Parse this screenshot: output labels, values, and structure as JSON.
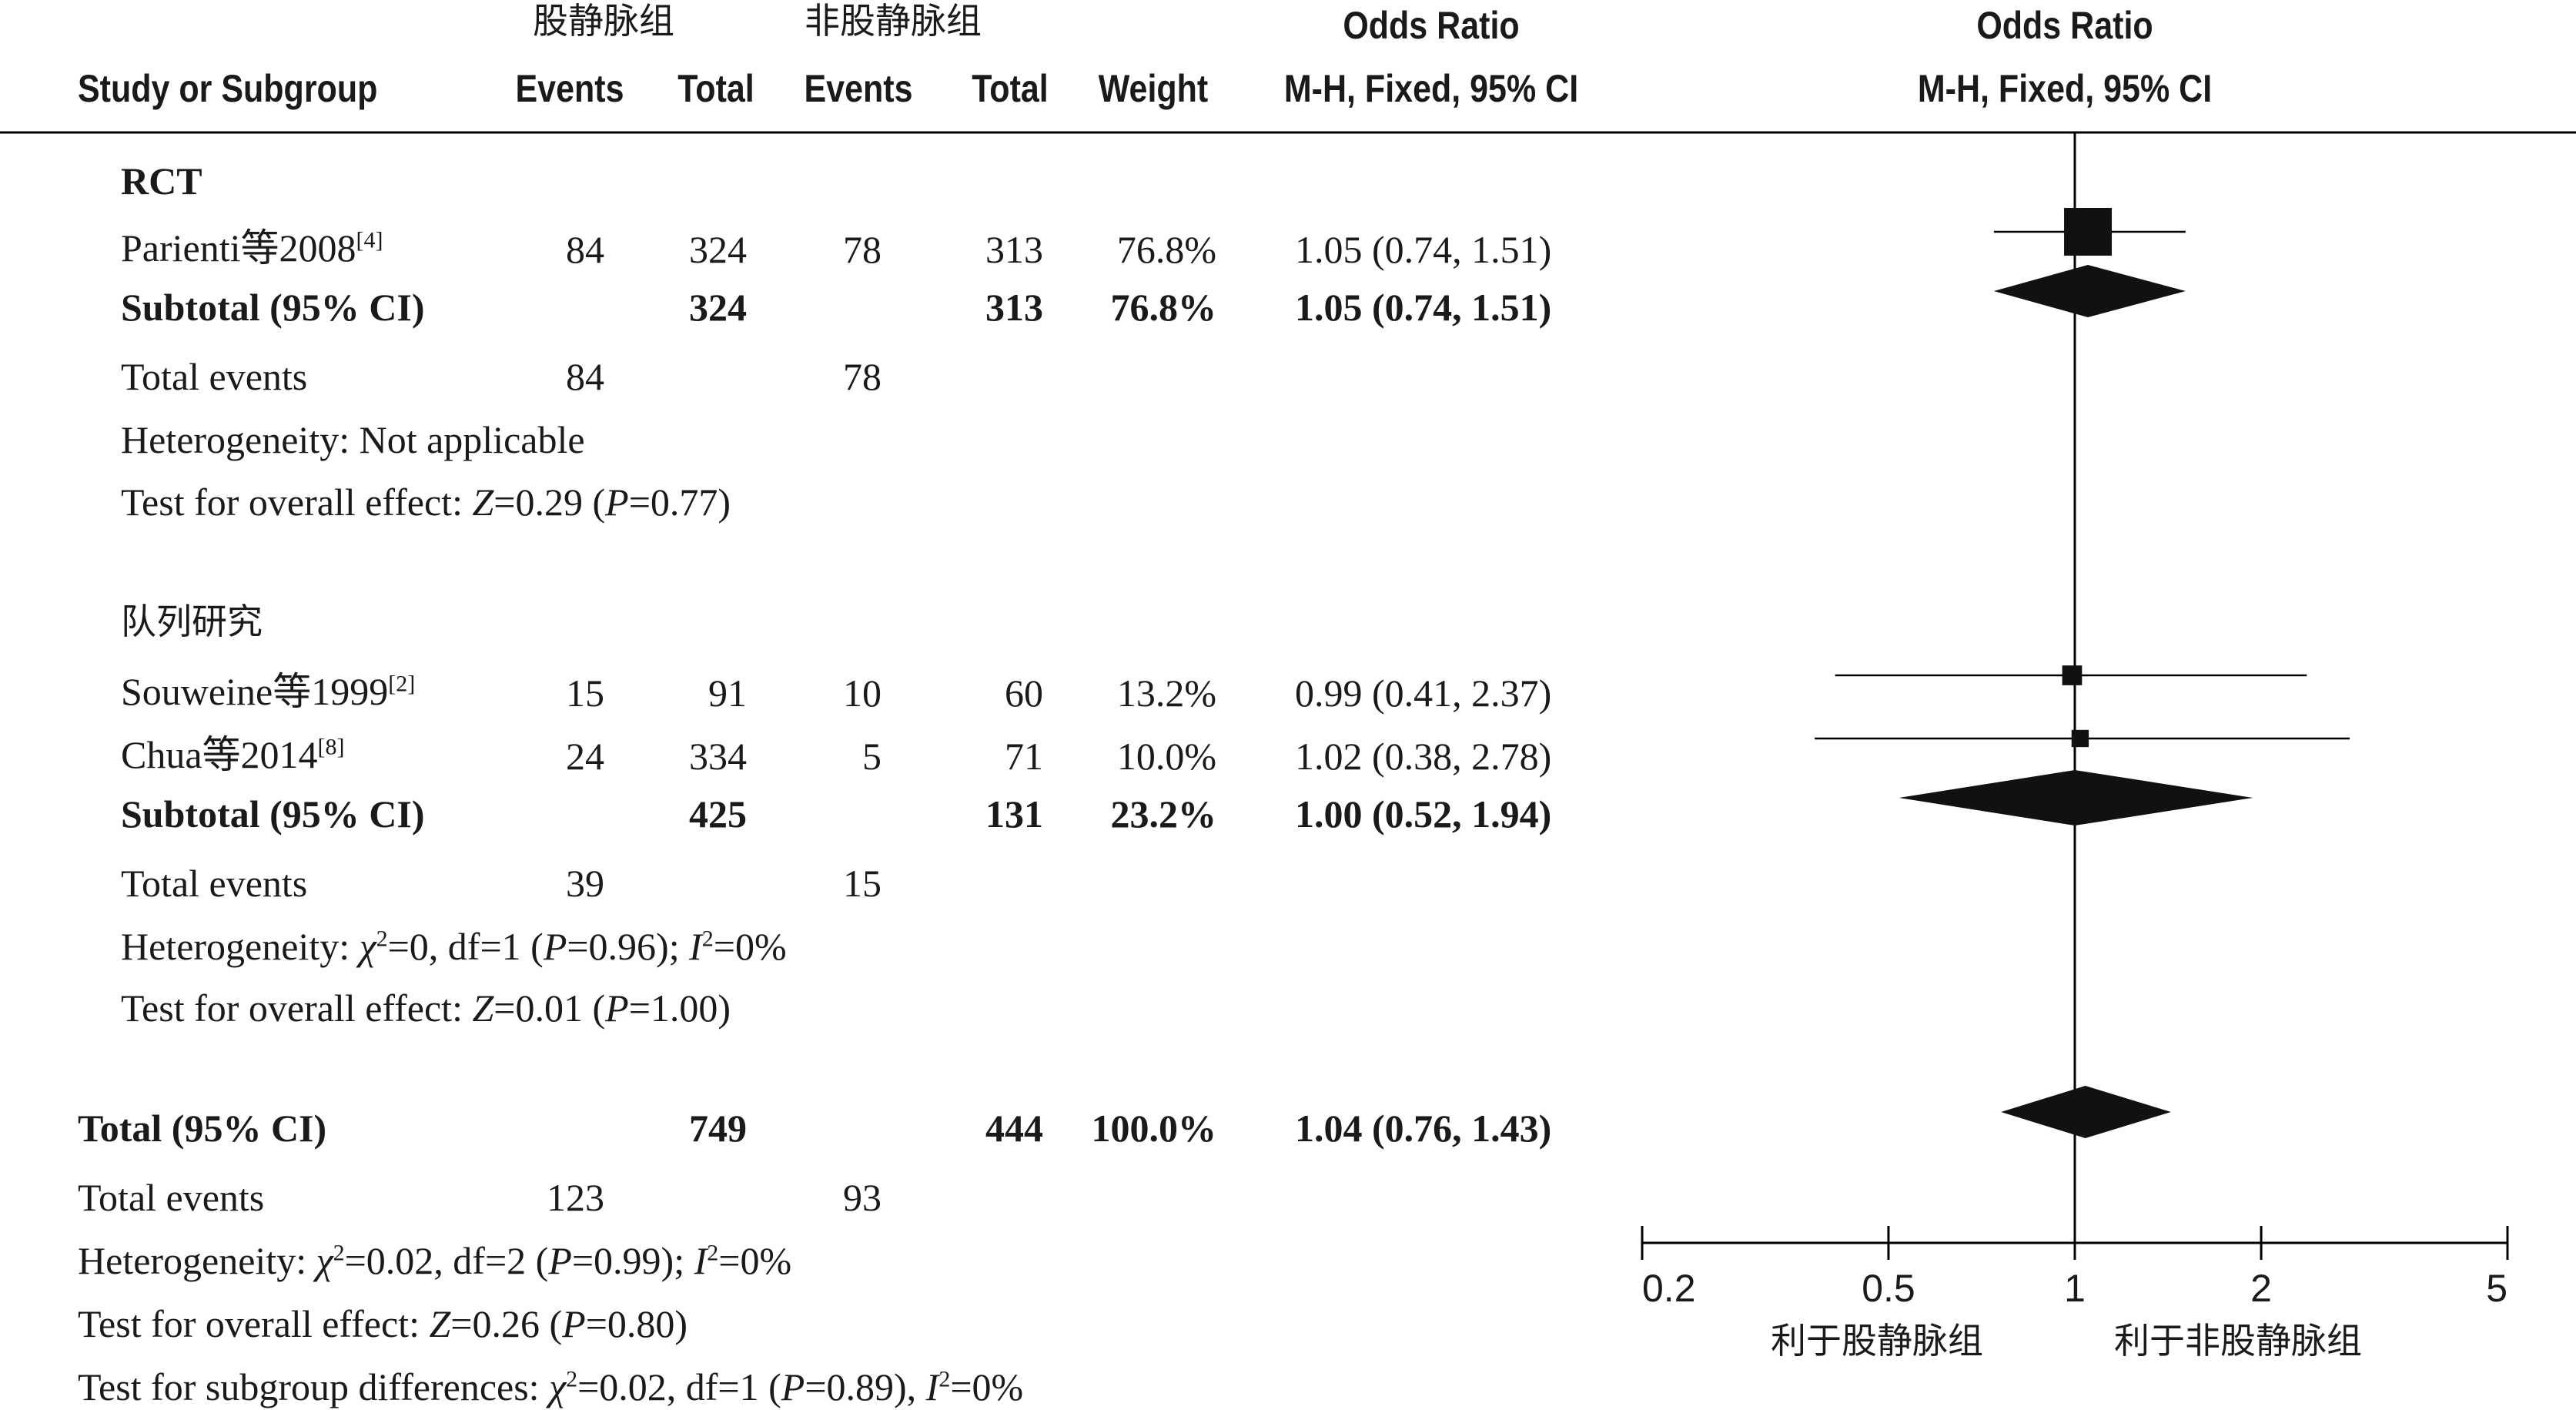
{
  "header": {
    "group1": "股静脉组",
    "group2": "非股静脉组",
    "odds_ratio_table": "Odds Ratio",
    "method_table": "M-H, Fixed, 95% CI",
    "odds_ratio_plot": "Odds Ratio",
    "method_plot": "M-H, Fixed, 95% CI",
    "study": "Study or Subgroup",
    "events1": "Events",
    "total1": "Total",
    "events2": "Events",
    "total2": "Total",
    "weight": "Weight"
  },
  "subgroups": [
    {
      "label": "RCT",
      "studies": [
        {
          "name": "Parienti等2008",
          "ref": "[4]",
          "events1": "84",
          "total1": "324",
          "events2": "78",
          "total2": "313",
          "weight": "76.8%",
          "ci": "1.05 (0.74, 1.51)"
        }
      ],
      "subtotal": {
        "label": "Subtotal (95% CI)",
        "total1": "324",
        "total2": "313",
        "weight": "76.8%",
        "ci": "1.05 (0.74, 1.51)"
      },
      "total_events": {
        "label": "Total events",
        "e1": "84",
        "e2": "78"
      },
      "heterogeneity": "Heterogeneity: Not applicable",
      "overall": {
        "pre": "Test for overall effect: ",
        "z": "Z",
        "zval": "=0.29 (",
        "p": "P",
        "pval": "=0.77)"
      }
    },
    {
      "label": "队列研究",
      "studies": [
        {
          "name": "Souweine等1999",
          "ref": "[2]",
          "events1": "15",
          "total1": "91",
          "events2": "10",
          "total2": "60",
          "weight": "13.2%",
          "ci": "0.99 (0.41, 2.37)"
        },
        {
          "name": "Chua等2014",
          "ref": "[8]",
          "events1": "24",
          "total1": "334",
          "events2": "5",
          "total2": "71",
          "weight": "10.0%",
          "ci": "1.02 (0.38, 2.78)"
        }
      ],
      "subtotal": {
        "label": "Subtotal (95% CI)",
        "total1": "425",
        "total2": "131",
        "weight": "23.2%",
        "ci": "1.00 (0.52, 1.94)"
      },
      "total_events": {
        "label": "Total events",
        "e1": "39",
        "e2": "15"
      },
      "heterogeneity": {
        "pre": "Heterogeneity: ",
        "chi": "χ",
        "sq": "2",
        "mid": "=0, df=1 (",
        "p": "P",
        "pval": "=0.96); ",
        "i": "I",
        "isq": "2",
        "ival": "=0%"
      },
      "overall": {
        "pre": "Test for overall effect: ",
        "z": "Z",
        "zval": "=0.01 (",
        "p": "P",
        "pval": "=1.00)"
      }
    }
  ],
  "total": {
    "label": "Total (95% CI)",
    "total1": "749",
    "total2": "444",
    "weight": "100.0%",
    "ci": "1.04 (0.76, 1.43)",
    "events_label": "Total events",
    "e1": "123",
    "e2": "93",
    "heterogeneity": {
      "pre": "Heterogeneity: ",
      "chi": "χ",
      "sq": "2",
      "mid": "=0.02, df=2 (",
      "p": "P",
      "pval": "=0.99); ",
      "i": "I",
      "isq": "2",
      "ival": "=0%"
    },
    "overall": {
      "pre": "Test for overall effect: ",
      "z": "Z",
      "zval": "=0.26 (",
      "p": "P",
      "pval": "=0.80)"
    },
    "subgroup_diff": {
      "pre": "Test for subgroup differences: ",
      "chi": "χ",
      "sq": "2",
      "mid": "=0.02, df=1 (",
      "p": "P",
      "pval": "=0.89), ",
      "i": "I",
      "isq": "2",
      "ival": "=0%"
    }
  },
  "axis": {
    "favours_left": "利于股静脉组",
    "favours_right": "利于非股静脉组"
  },
  "chart_data": {
    "type": "forest",
    "scale": "log",
    "xlim": [
      0.2,
      5
    ],
    "ticks": [
      0.2,
      0.5,
      1,
      2,
      5
    ],
    "tick_labels": [
      "0.2",
      "0.5",
      "1",
      "2",
      "5"
    ],
    "studies": [
      {
        "name": "Parienti等2008",
        "or": 1.05,
        "lo": 0.74,
        "hi": 1.51,
        "weight": 76.8
      },
      {
        "name": "Souweine等1999",
        "or": 0.99,
        "lo": 0.41,
        "hi": 2.37,
        "weight": 13.2
      },
      {
        "name": "Chua等2014",
        "or": 1.02,
        "lo": 0.38,
        "hi": 2.78,
        "weight": 10.0
      }
    ],
    "diamonds": [
      {
        "name": "RCT Subtotal",
        "or": 1.05,
        "lo": 0.74,
        "hi": 1.51
      },
      {
        "name": "队列研究 Subtotal",
        "or": 1.0,
        "lo": 0.52,
        "hi": 1.94
      },
      {
        "name": "Total",
        "or": 1.04,
        "lo": 0.76,
        "hi": 1.43
      }
    ]
  }
}
